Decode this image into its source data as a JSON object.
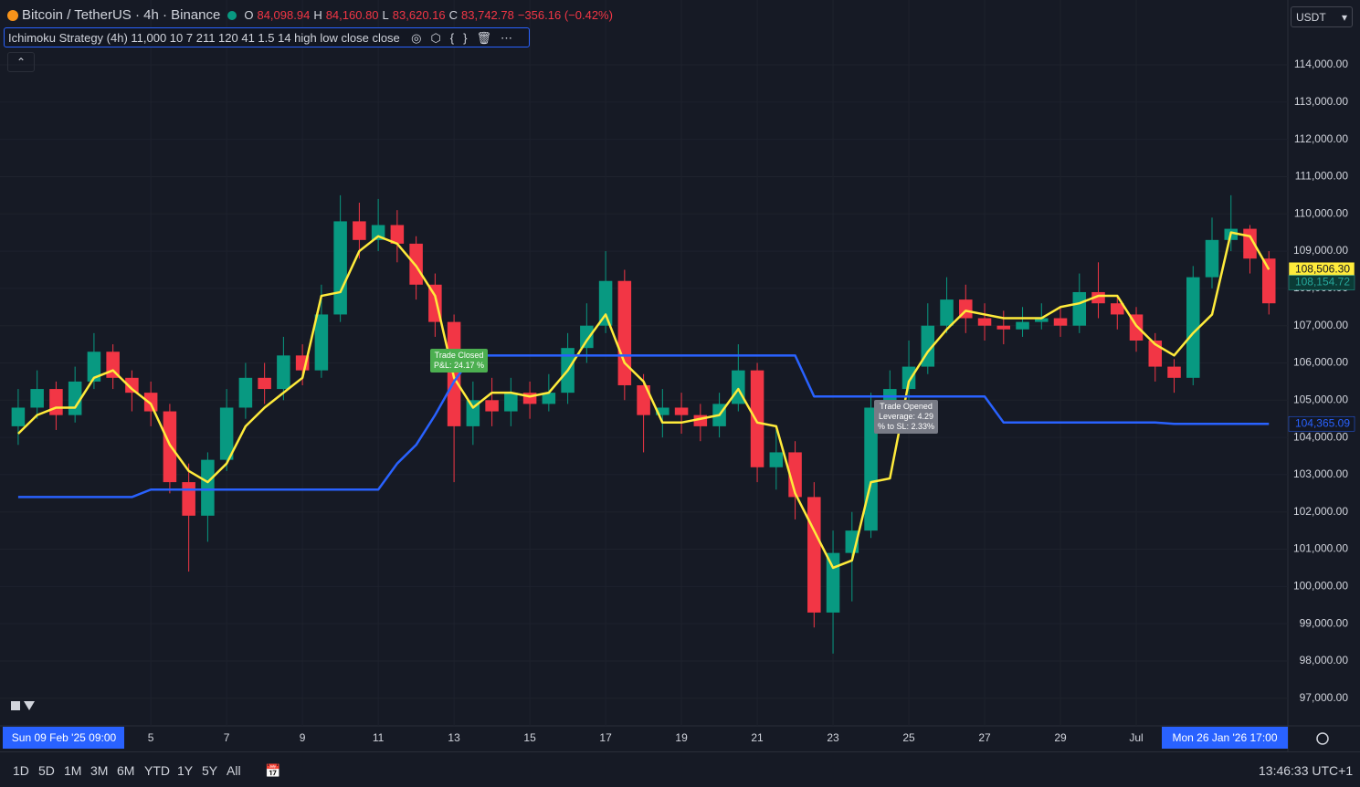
{
  "ui": {
    "symbol": "Bitcoin / TetherUS · 4h · Binance",
    "ohlc": [
      "O",
      "84,098.94",
      "H",
      "84,160.80",
      "L",
      "83,620.16",
      "C",
      "83,742.78",
      "−356.16 (−0.42%)"
    ],
    "indicator": "Ichimoku Strategy (4h) 11,000 10 7 211 120 41 1.5 14 high low close close",
    "currency": "USDT",
    "start_date": "Sun 09 Feb '25   09:00",
    "end_date": "Mon 26 Jan '26   17:00",
    "ranges": [
      "1D",
      "5D",
      "1M",
      "3M",
      "6M",
      "YTD",
      "1Y",
      "5Y",
      "All"
    ],
    "clock": "13:46:33 UTC+1",
    "trade_closed": [
      "Trade Closed",
      "P&L: 24.17 %"
    ],
    "trade_opened": [
      "Trade Opened",
      "Leverage: 4.29",
      "% to SL: 2.33%"
    ]
  },
  "chart_data": {
    "type": "candlestick",
    "up_color": "#089981",
    "down_color": "#f23645",
    "grid": true,
    "xlim": [
      1.02,
      35
    ],
    "ylim": [
      96260,
      115740
    ],
    "xticks": [
      5,
      7,
      9,
      11,
      13,
      15,
      17,
      19,
      21,
      23,
      25,
      27,
      29,
      {
        "value": 31,
        "label": "Jul"
      }
    ],
    "yticks": [
      {
        "value": 97000,
        "label": "97,000.00"
      },
      {
        "value": 98000,
        "label": "98,000.00"
      },
      {
        "value": 99000,
        "label": "99,000.00"
      },
      {
        "value": 100000,
        "label": "100,000.00"
      },
      {
        "value": 101000,
        "label": "101,000.00"
      },
      {
        "value": 102000,
        "label": "102,000.00"
      },
      {
        "value": 103000,
        "label": "103,000.00"
      },
      {
        "value": 104000,
        "label": "104,000.00"
      },
      {
        "value": 105000,
        "label": "105,000.00"
      },
      {
        "value": 106000,
        "label": "106,000.00"
      },
      {
        "value": 107000,
        "label": "107,000.00"
      },
      {
        "value": 108000,
        "label": "108,000.00"
      },
      {
        "value": 109000,
        "label": "109,000.00"
      },
      {
        "value": 110000,
        "label": "110,000.00"
      },
      {
        "value": 111000,
        "label": "111,000.00"
      },
      {
        "value": 112000,
        "label": "112,000.00"
      },
      {
        "value": 113000,
        "label": "113,000.00"
      },
      {
        "value": 114000,
        "label": "114,000.00"
      }
    ],
    "x": [
      1.5,
      2,
      2.5,
      3,
      3.5,
      4,
      4.5,
      5,
      5.5,
      6,
      6.5,
      7,
      7.5,
      8,
      8.5,
      9,
      9.5,
      10,
      10.5,
      11,
      11.5,
      12,
      12.5,
      13,
      13.5,
      14,
      14.5,
      15,
      15.5,
      16,
      16.5,
      17,
      17.5,
      18,
      18.5,
      19,
      19.5,
      20,
      20.5,
      21,
      21.5,
      22,
      22.5,
      23,
      23.5,
      24,
      24.5,
      25,
      25.5,
      26,
      26.5,
      27,
      27.5,
      28,
      28.5,
      29,
      29.5,
      30,
      30.5,
      31,
      31.5,
      32,
      32.5,
      33,
      33.5,
      34,
      34.5
    ],
    "open": [
      104300,
      104800,
      105300,
      104600,
      105500,
      106300,
      105600,
      105200,
      104700,
      102800,
      101900,
      103400,
      104800,
      105600,
      105300,
      106200,
      105800,
      107300,
      109800,
      109300,
      109700,
      109200,
      108100,
      107100,
      104300,
      105000,
      104700,
      105200,
      104900,
      105200,
      106400,
      107000,
      108200,
      105400,
      104600,
      104800,
      104600,
      104300,
      104900,
      105800,
      103200,
      103600,
      102400,
      99300,
      100900,
      101500,
      104800,
      105300,
      105900,
      107000,
      107700,
      107200,
      107000,
      106900,
      107100,
      107200,
      107000,
      107900,
      107600,
      107300,
      106600,
      105900,
      105600,
      108300,
      109300,
      109600,
      108800
    ],
    "high": [
      105300,
      105800,
      105500,
      105900,
      106800,
      106500,
      105800,
      105500,
      104900,
      103300,
      103600,
      105300,
      106000,
      106000,
      106700,
      106500,
      108100,
      110500,
      110300,
      110400,
      110100,
      109400,
      108400,
      107300,
      105500,
      105600,
      105600,
      105500,
      105700,
      106800,
      107600,
      109000,
      108500,
      105700,
      105300,
      105200,
      104900,
      105200,
      106500,
      106000,
      104200,
      103900,
      102800,
      101500,
      102000,
      105200,
      105800,
      106600,
      107600,
      108300,
      108100,
      107600,
      107400,
      107500,
      107600,
      107500,
      108400,
      108700,
      107800,
      107500,
      106800,
      106100,
      108600,
      109900,
      110500,
      109700,
      109000
    ],
    "low": [
      103800,
      104500,
      104200,
      104400,
      105300,
      105300,
      104700,
      104300,
      102500,
      100400,
      101200,
      103100,
      104500,
      104900,
      105000,
      105400,
      105600,
      107100,
      108800,
      109000,
      108700,
      107700,
      106700,
      102800,
      103800,
      104300,
      104300,
      104500,
      104700,
      104900,
      106000,
      106800,
      105000,
      103600,
      104000,
      104100,
      103900,
      104000,
      104700,
      102800,
      102600,
      101800,
      98900,
      98200,
      99600,
      101300,
      104500,
      105000,
      105700,
      106800,
      106800,
      106600,
      106500,
      106700,
      106900,
      106700,
      106800,
      107200,
      106900,
      106300,
      105500,
      105200,
      105400,
      108000,
      109000,
      108400,
      107300
    ],
    "close": [
      104800,
      105300,
      104600,
      105500,
      106300,
      105600,
      105200,
      104700,
      102800,
      101900,
      103400,
      104800,
      105600,
      105300,
      106200,
      105800,
      107300,
      109800,
      109300,
      109700,
      109200,
      108100,
      107100,
      104300,
      105000,
      104700,
      105200,
      104900,
      105200,
      106400,
      107000,
      108200,
      105400,
      104600,
      104800,
      104600,
      104300,
      104900,
      105800,
      103200,
      103600,
      102400,
      99300,
      100900,
      101500,
      104800,
      105300,
      105900,
      107000,
      107700,
      107200,
      107000,
      106900,
      107100,
      107200,
      107000,
      107900,
      107600,
      107300,
      106600,
      105900,
      105600,
      108300,
      109300,
      109600,
      108800,
      107600
    ],
    "lines": [
      {
        "color": "#ffeb3b",
        "values": [
          104100,
          104600,
          104800,
          104800,
          105600,
          105800,
          105300,
          104900,
          103800,
          103100,
          102800,
          103300,
          104300,
          104800,
          105200,
          105600,
          107800,
          107900,
          109000,
          109400,
          109200,
          108600,
          107800,
          105600,
          104800,
          105200,
          105200,
          105100,
          105200,
          105800,
          106600,
          107300,
          106000,
          105500,
          104400,
          104400,
          104500,
          104600,
          105300,
          104400,
          104300,
          102500,
          101500,
          100500,
          100700,
          102800,
          102900,
          105500,
          106300,
          106900,
          107400,
          107300,
          107200,
          107200,
          107200,
          107500,
          107600,
          107800,
          107800,
          107000,
          106500,
          106200,
          106800,
          107300,
          109500,
          109400,
          108506.3
        ]
      },
      {
        "color": "#2962ff",
        "values": [
          102400,
          102400,
          102400,
          102400,
          102400,
          102400,
          102400,
          102600,
          102600,
          102600,
          102600,
          102600,
          102600,
          102600,
          102600,
          102600,
          102600,
          102600,
          102600,
          102600,
          103300,
          103800,
          104600,
          105500,
          106200,
          106200,
          106200,
          106200,
          106200,
          106200,
          106200,
          106200,
          106200,
          106200,
          106200,
          106200,
          106200,
          106200,
          106200,
          106200,
          106200,
          106200,
          105100,
          105100,
          105100,
          105100,
          105100,
          105100,
          105100,
          105100,
          105100,
          105100,
          104400,
          104400,
          104400,
          104400,
          104400,
          104400,
          104400,
          104400,
          104400,
          104365.09,
          104365.09,
          104365.09,
          104365.09,
          104365.09,
          104365.09
        ]
      }
    ],
    "price_labels": [
      {
        "value": 108506.3,
        "label": "108,506.30",
        "color": "#ffeb3b",
        "text_color": "#131722"
      },
      {
        "value": 108154.72,
        "label": "108,154.72",
        "color": "#0b3b36",
        "text_color": "#26a69a"
      },
      {
        "value": 104365.09,
        "label": "104,365.09",
        "color": "#131722",
        "text_color": "#2962ff"
      }
    ]
  }
}
